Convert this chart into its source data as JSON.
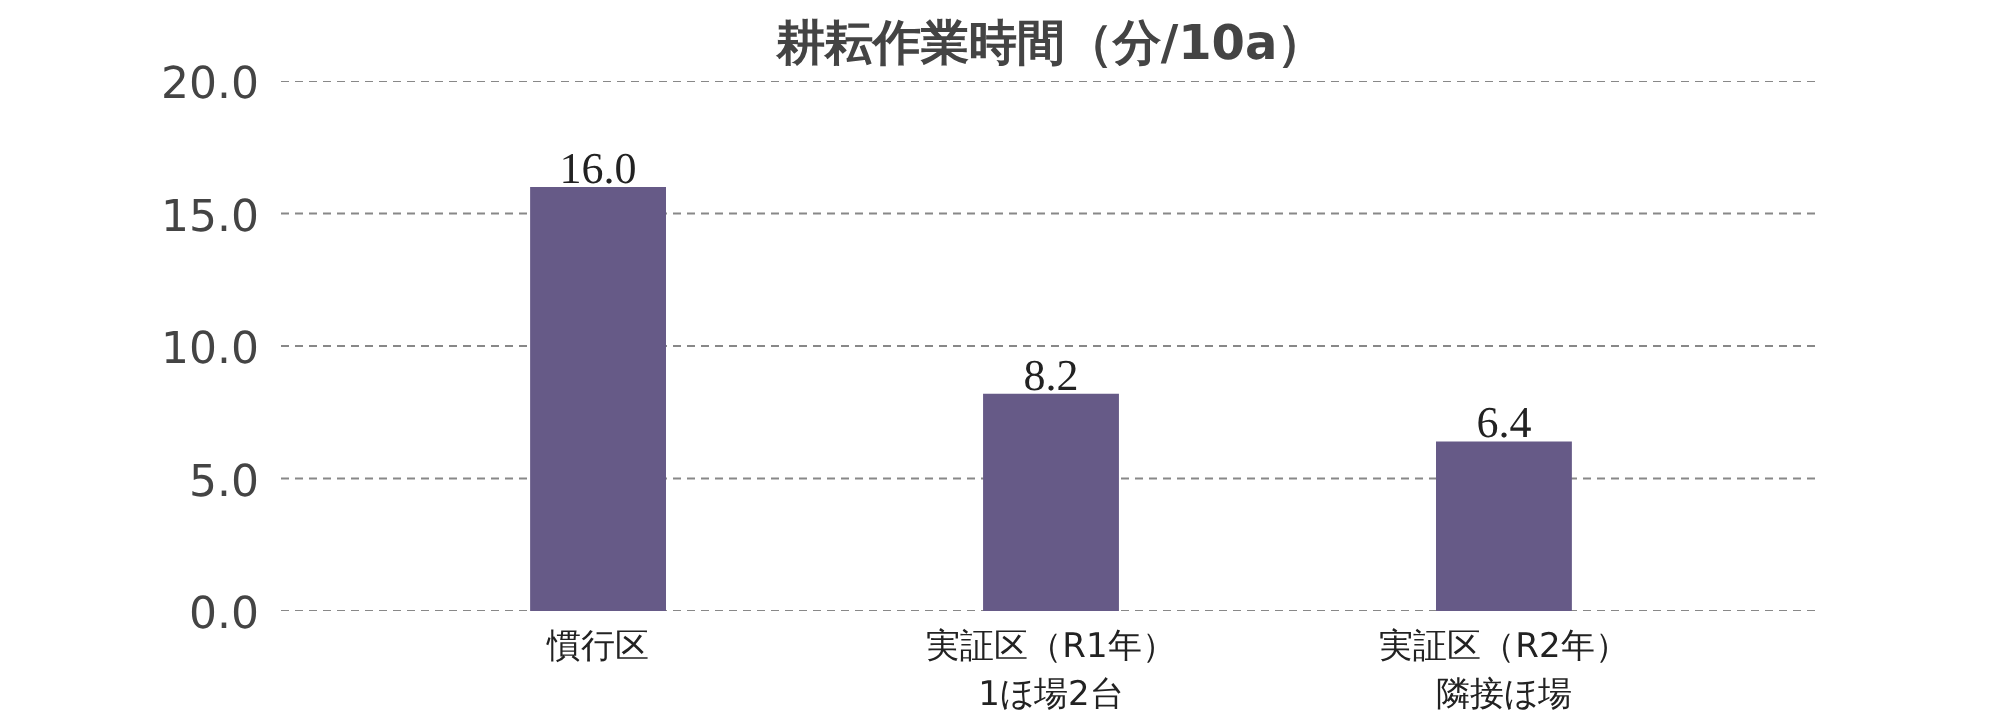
{
  "chart_data": {
    "type": "bar",
    "title": "耕耘作業時間（分/10a）",
    "categories": [
      "慣行区",
      "実証区（R1年）1ほ場2台",
      "実証区（R2年）隣接ほ場"
    ],
    "values": [
      16.0,
      8.2,
      6.4
    ],
    "color": "#665a87",
    "value_labels": [
      "16.0",
      "8.2",
      "6.4"
    ],
    "ylim": [
      0,
      20
    ],
    "yticks": [
      {
        "value": 0,
        "label": "0.0"
      },
      {
        "value": 5,
        "label": "5.0"
      },
      {
        "value": 10,
        "label": "10.0"
      },
      {
        "value": 15,
        "label": "15.0"
      },
      {
        "value": 20,
        "label": "20.0"
      }
    ],
    "grid": "y"
  }
}
